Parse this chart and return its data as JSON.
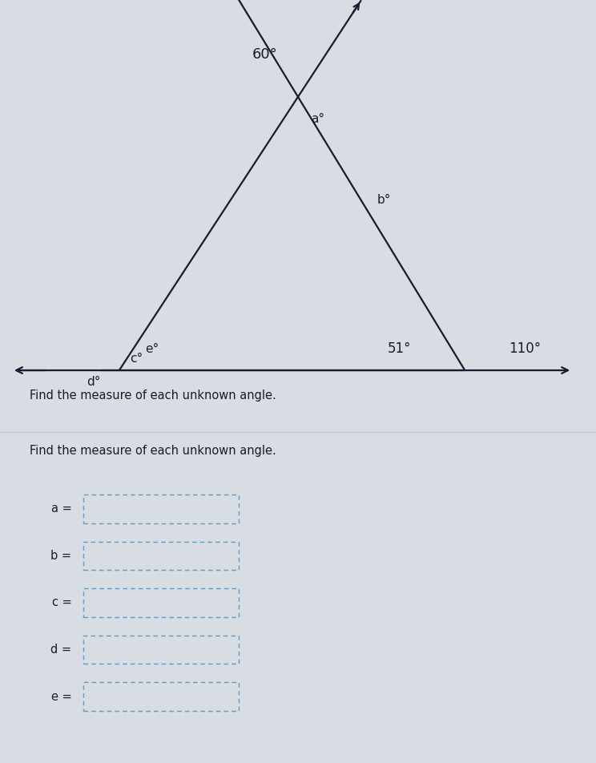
{
  "bg_color_top": "#d8dde3",
  "bg_color_bottom": "#ffffff",
  "divider_color": "#c0c8d0",
  "header_bar_color": "#3a7bbf",
  "line_color": "#1a1a2e",
  "text_color": "#1a1a2e",
  "dashed_box_color": "#6699bb",
  "title_text": "Find the measure of each unknown angle.",
  "labels": [
    "a",
    "b",
    "c",
    "d",
    "e"
  ],
  "fig_width": 7.44,
  "fig_height": 9.52,
  "diagram_bg": "#dce1e8",
  "answer_bg": "#f2f4f6",
  "label_60": "60°",
  "label_a": "a°",
  "label_b": "b°",
  "label_c": "c°",
  "label_d": "d°",
  "label_e": "e°",
  "label_51": "51°",
  "label_110": "110°"
}
